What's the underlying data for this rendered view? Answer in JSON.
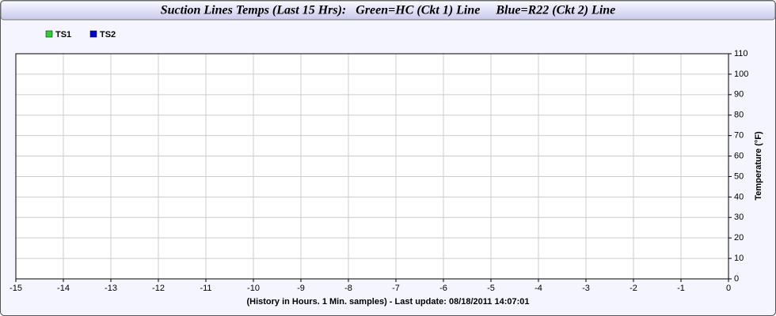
{
  "chart_data": {
    "type": "line",
    "title": "Suction Lines Temps (Last 15 Hrs):   Green=HC (Ckt 1) Line     Blue=R22 (Ckt 2) Line",
    "x_label": "(History in Hours. 1 Min. samples) - Last update: 08/18/2011 14:07:01",
    "y_label": "Temperature (°F)",
    "x": [],
    "series": [
      {
        "name": "TS1",
        "color": "#33cc33",
        "values": []
      },
      {
        "name": "TS2",
        "color": "#0000cc",
        "values": []
      }
    ],
    "xlim": [
      -15,
      0
    ],
    "xticks": [
      -15,
      -14,
      -13,
      -12,
      -11,
      -10,
      -9,
      -8,
      -7,
      -6,
      -5,
      -4,
      -3,
      -2,
      -1,
      0
    ],
    "ylim": [
      0,
      110
    ],
    "yticks": [
      0,
      10,
      20,
      30,
      40,
      50,
      60,
      70,
      80,
      90,
      100,
      110
    ],
    "grid": true
  }
}
